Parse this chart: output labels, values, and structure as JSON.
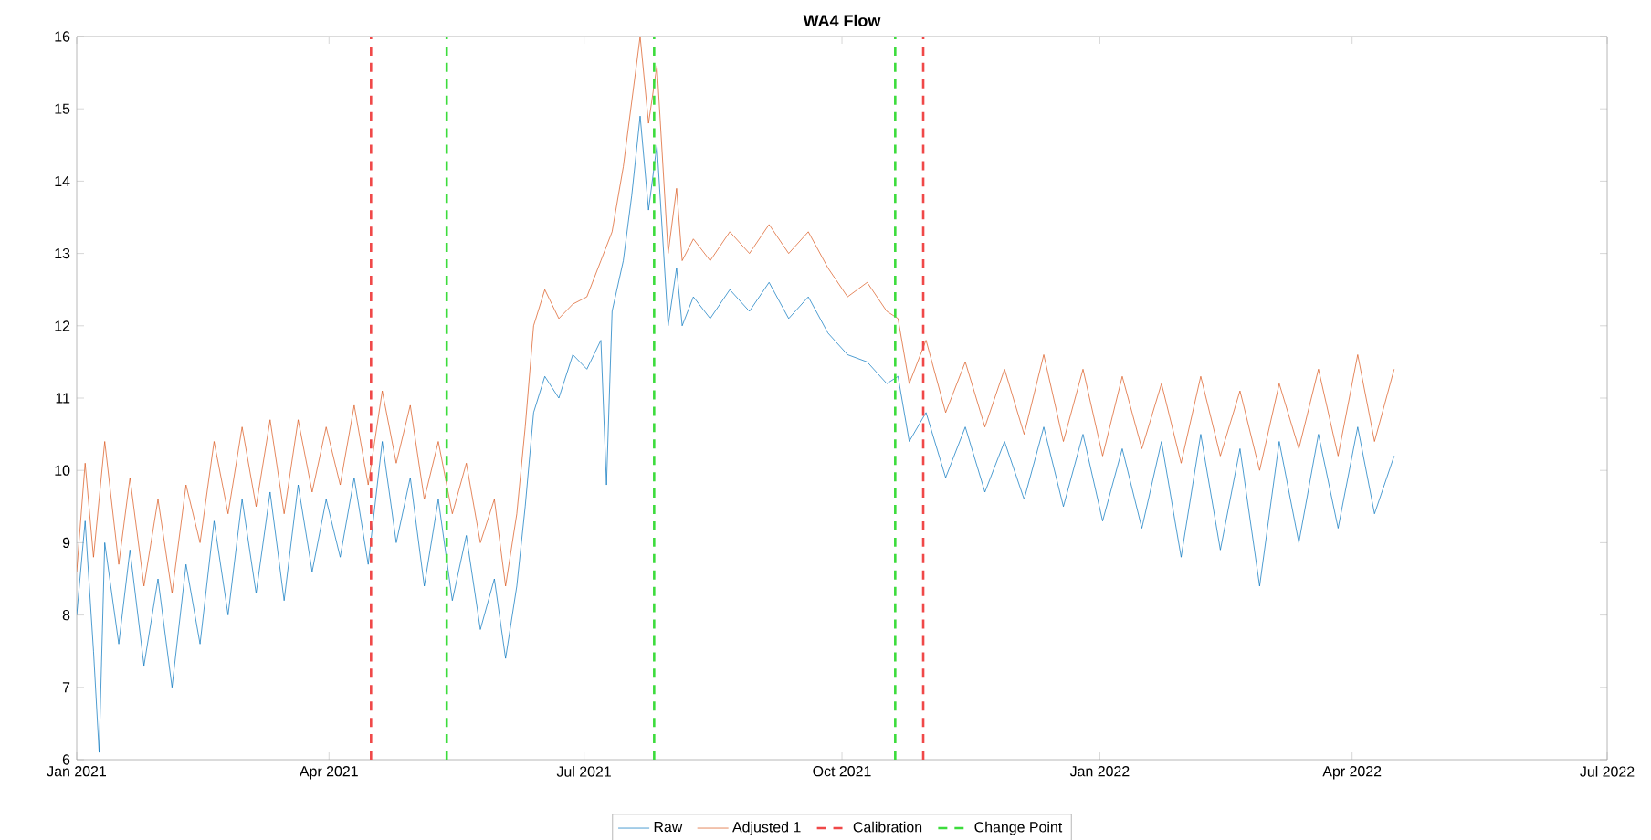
{
  "chart_data": {
    "type": "line",
    "title": "WA4 Flow",
    "xlim": [
      "2021-01-01",
      "2022-07-01"
    ],
    "xticks": [
      {
        "value": "2021-01-01",
        "label": "Jan 2021"
      },
      {
        "value": "2021-04-01",
        "label": "Apr 2021"
      },
      {
        "value": "2021-07-01",
        "label": "Jul 2021"
      },
      {
        "value": "2021-10-01",
        "label": "Oct 2021"
      },
      {
        "value": "2022-01-01",
        "label": "Jan 2022"
      },
      {
        "value": "2022-04-01",
        "label": "Apr 2022"
      },
      {
        "value": "2022-07-01",
        "label": "Jul 2022"
      }
    ],
    "ylim": [
      6,
      16
    ],
    "yticks": [
      6,
      7,
      8,
      9,
      10,
      11,
      12,
      13,
      14,
      15,
      16
    ],
    "grid": false,
    "legend": "bottom",
    "line_style": "solid",
    "marker": "none",
    "series": [
      {
        "name": "Raw",
        "color": "#0072bd",
        "x": [
          "2021-01-01",
          "2021-01-04",
          "2021-01-07",
          "2021-01-09",
          "2021-01-11",
          "2021-01-16",
          "2021-01-20",
          "2021-01-25",
          "2021-01-30",
          "2021-02-04",
          "2021-02-09",
          "2021-02-14",
          "2021-02-19",
          "2021-02-24",
          "2021-03-01",
          "2021-03-06",
          "2021-03-11",
          "2021-03-16",
          "2021-03-21",
          "2021-03-26",
          "2021-03-31",
          "2021-04-05",
          "2021-04-10",
          "2021-04-15",
          "2021-04-20",
          "2021-04-25",
          "2021-04-30",
          "2021-05-05",
          "2021-05-10",
          "2021-05-15",
          "2021-05-20",
          "2021-05-25",
          "2021-05-30",
          "2021-06-03",
          "2021-06-07",
          "2021-06-10",
          "2021-06-13",
          "2021-06-17",
          "2021-06-22",
          "2021-06-27",
          "2021-07-02",
          "2021-07-07",
          "2021-07-09",
          "2021-07-11",
          "2021-07-15",
          "2021-07-18",
          "2021-07-21",
          "2021-07-24",
          "2021-07-27",
          "2021-07-31",
          "2021-08-03",
          "2021-08-05",
          "2021-08-09",
          "2021-08-15",
          "2021-08-22",
          "2021-08-29",
          "2021-09-05",
          "2021-09-12",
          "2021-09-19",
          "2021-09-26",
          "2021-10-03",
          "2021-10-10",
          "2021-10-17",
          "2021-10-21",
          "2021-10-25",
          "2021-10-31",
          "2021-11-07",
          "2021-11-14",
          "2021-11-21",
          "2021-11-28",
          "2021-12-05",
          "2021-12-12",
          "2021-12-19",
          "2021-12-26",
          "2022-01-02",
          "2022-01-09",
          "2022-01-16",
          "2022-01-23",
          "2022-01-30",
          "2022-02-06",
          "2022-02-13",
          "2022-02-20",
          "2022-02-27",
          "2022-03-06",
          "2022-03-13",
          "2022-03-20",
          "2022-03-27",
          "2022-04-03",
          "2022-04-09",
          "2022-04-16"
        ],
        "values": [
          8.0,
          9.3,
          7.5,
          6.1,
          9.0,
          7.6,
          8.9,
          7.3,
          8.5,
          7.0,
          8.7,
          7.6,
          9.3,
          8.0,
          9.6,
          8.3,
          9.7,
          8.2,
          9.8,
          8.6,
          9.6,
          8.8,
          9.9,
          8.7,
          10.4,
          9.0,
          9.9,
          8.4,
          9.6,
          8.2,
          9.1,
          7.8,
          8.5,
          7.4,
          8.4,
          9.5,
          10.8,
          11.3,
          11.0,
          11.6,
          11.4,
          11.8,
          9.8,
          12.2,
          12.9,
          13.8,
          14.9,
          13.6,
          14.5,
          12.0,
          12.8,
          12.0,
          12.4,
          12.1,
          12.5,
          12.2,
          12.6,
          12.1,
          12.4,
          11.9,
          11.6,
          11.5,
          11.2,
          11.3,
          10.4,
          10.8,
          9.9,
          10.6,
          9.7,
          10.4,
          9.6,
          10.6,
          9.5,
          10.5,
          9.3,
          10.3,
          9.2,
          10.4,
          8.8,
          10.5,
          8.9,
          10.3,
          8.4,
          10.4,
          9.0,
          10.5,
          9.2,
          10.6,
          9.4,
          10.2
        ]
      },
      {
        "name": "Adjusted 1",
        "color": "#d95319",
        "x": [
          "2021-01-01",
          "2021-01-04",
          "2021-01-07",
          "2021-01-11",
          "2021-01-16",
          "2021-01-20",
          "2021-01-25",
          "2021-01-30",
          "2021-02-04",
          "2021-02-09",
          "2021-02-14",
          "2021-02-19",
          "2021-02-24",
          "2021-03-01",
          "2021-03-06",
          "2021-03-11",
          "2021-03-16",
          "2021-03-21",
          "2021-03-26",
          "2021-03-31",
          "2021-04-05",
          "2021-04-10",
          "2021-04-15",
          "2021-04-20",
          "2021-04-25",
          "2021-04-30",
          "2021-05-05",
          "2021-05-10",
          "2021-05-15",
          "2021-05-20",
          "2021-05-25",
          "2021-05-30",
          "2021-06-03",
          "2021-06-07",
          "2021-06-10",
          "2021-06-13",
          "2021-06-17",
          "2021-06-22",
          "2021-06-27",
          "2021-07-02",
          "2021-07-07",
          "2021-07-11",
          "2021-07-15",
          "2021-07-18",
          "2021-07-21",
          "2021-07-24",
          "2021-07-27",
          "2021-07-31",
          "2021-08-03",
          "2021-08-05",
          "2021-08-09",
          "2021-08-15",
          "2021-08-22",
          "2021-08-29",
          "2021-09-05",
          "2021-09-12",
          "2021-09-19",
          "2021-09-26",
          "2021-10-03",
          "2021-10-10",
          "2021-10-17",
          "2021-10-21",
          "2021-10-25",
          "2021-10-31",
          "2021-11-07",
          "2021-11-14",
          "2021-11-21",
          "2021-11-28",
          "2021-12-05",
          "2021-12-12",
          "2021-12-19",
          "2021-12-26",
          "2022-01-02",
          "2022-01-09",
          "2022-01-16",
          "2022-01-23",
          "2022-01-30",
          "2022-02-06",
          "2022-02-13",
          "2022-02-20",
          "2022-02-27",
          "2022-03-06",
          "2022-03-13",
          "2022-03-20",
          "2022-03-27",
          "2022-04-03",
          "2022-04-09",
          "2022-04-16"
        ],
        "values": [
          8.6,
          10.1,
          8.8,
          10.4,
          8.7,
          9.9,
          8.4,
          9.6,
          8.3,
          9.8,
          9.0,
          10.4,
          9.4,
          10.6,
          9.5,
          10.7,
          9.4,
          10.7,
          9.7,
          10.6,
          9.8,
          10.9,
          9.8,
          11.1,
          10.1,
          10.9,
          9.6,
          10.4,
          9.4,
          10.1,
          9.0,
          9.6,
          8.4,
          9.4,
          10.6,
          12.0,
          12.5,
          12.1,
          12.3,
          12.4,
          12.9,
          13.3,
          14.2,
          15.1,
          16.0,
          14.8,
          15.6,
          13.0,
          13.9,
          12.9,
          13.2,
          12.9,
          13.3,
          13.0,
          13.4,
          13.0,
          13.3,
          12.8,
          12.4,
          12.6,
          12.2,
          12.1,
          11.2,
          11.8,
          10.8,
          11.5,
          10.6,
          11.4,
          10.5,
          11.6,
          10.4,
          11.4,
          10.2,
          11.3,
          10.3,
          11.2,
          10.1,
          11.3,
          10.2,
          11.1,
          10.0,
          11.2,
          10.3,
          11.4,
          10.2,
          11.6,
          10.4,
          11.4
        ]
      }
    ],
    "ref_lines": [
      {
        "axis": "x",
        "value": "2021-04-16",
        "label": "Calibration",
        "color": "#f04848",
        "line_style": "dashed"
      },
      {
        "axis": "x",
        "value": "2021-10-30",
        "color": "#f04848",
        "line_style": "dashed"
      },
      {
        "axis": "x",
        "value": "2021-05-13",
        "label": "Change Point",
        "color": "#3cdc3c",
        "line_style": "dashed"
      },
      {
        "axis": "x",
        "value": "2021-07-26",
        "color": "#3cdc3c",
        "line_style": "dashed"
      },
      {
        "axis": "x",
        "value": "2021-10-20",
        "color": "#3cdc3c",
        "line_style": "dashed"
      }
    ]
  }
}
